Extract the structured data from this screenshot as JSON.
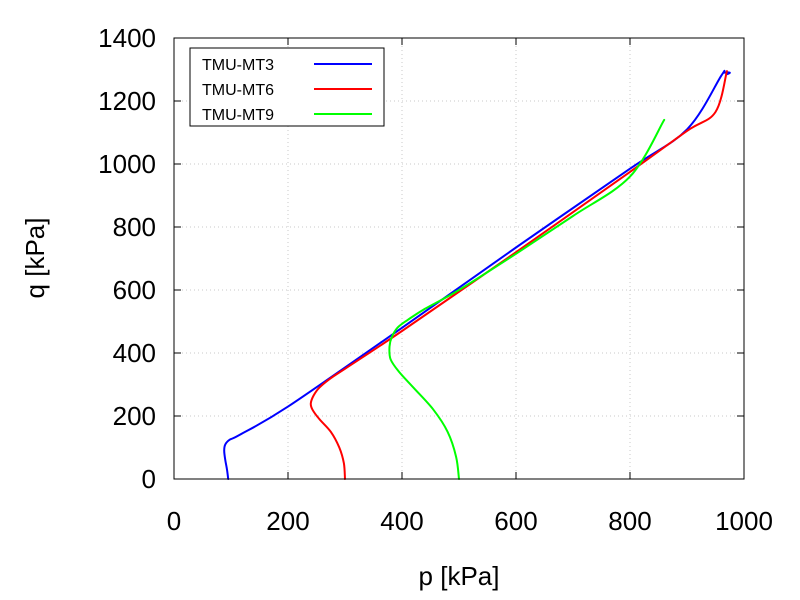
{
  "chart_data": {
    "type": "line",
    "title": "",
    "xlabel": "p [kPa]",
    "ylabel": "q [kPa]",
    "xlim": [
      0,
      1000
    ],
    "ylim": [
      0,
      1400
    ],
    "xticks": [
      0,
      200,
      400,
      600,
      800,
      1000
    ],
    "yticks": [
      0,
      200,
      400,
      600,
      800,
      1000,
      1200,
      1400
    ],
    "grid": true,
    "legend_position": "top-left",
    "series": [
      {
        "name": "TMU-MT3",
        "color": "#0000ff",
        "x": [
          95,
          93,
          90,
          88,
          90,
          98,
          115,
          200,
          400,
          600,
          800,
          900,
          960,
          965,
          975,
          970
        ],
        "y": [
          0,
          30,
          60,
          90,
          110,
          125,
          140,
          230,
          480,
          735,
          985,
          1110,
          1280,
          1290,
          1290,
          1285
        ]
      },
      {
        "name": "TMU-MT6",
        "color": "#ff0000",
        "x": [
          300,
          298,
          290,
          275,
          255,
          243,
          240,
          245,
          255,
          275,
          300,
          400,
          600,
          800,
          900,
          950,
          970
        ],
        "y": [
          0,
          50,
          100,
          150,
          190,
          220,
          240,
          265,
          290,
          320,
          350,
          470,
          720,
          975,
          1105,
          1165,
          1295
        ]
      },
      {
        "name": "TMU-MT9",
        "color": "#00ff00",
        "x": [
          500,
          495,
          480,
          455,
          420,
          395,
          380,
          378,
          382,
          392,
          410,
          440,
          500,
          600,
          700,
          800,
          860
        ],
        "y": [
          0,
          70,
          150,
          220,
          290,
          340,
          380,
          420,
          450,
          480,
          505,
          540,
          600,
          715,
          835,
          960,
          1140
        ]
      }
    ]
  }
}
